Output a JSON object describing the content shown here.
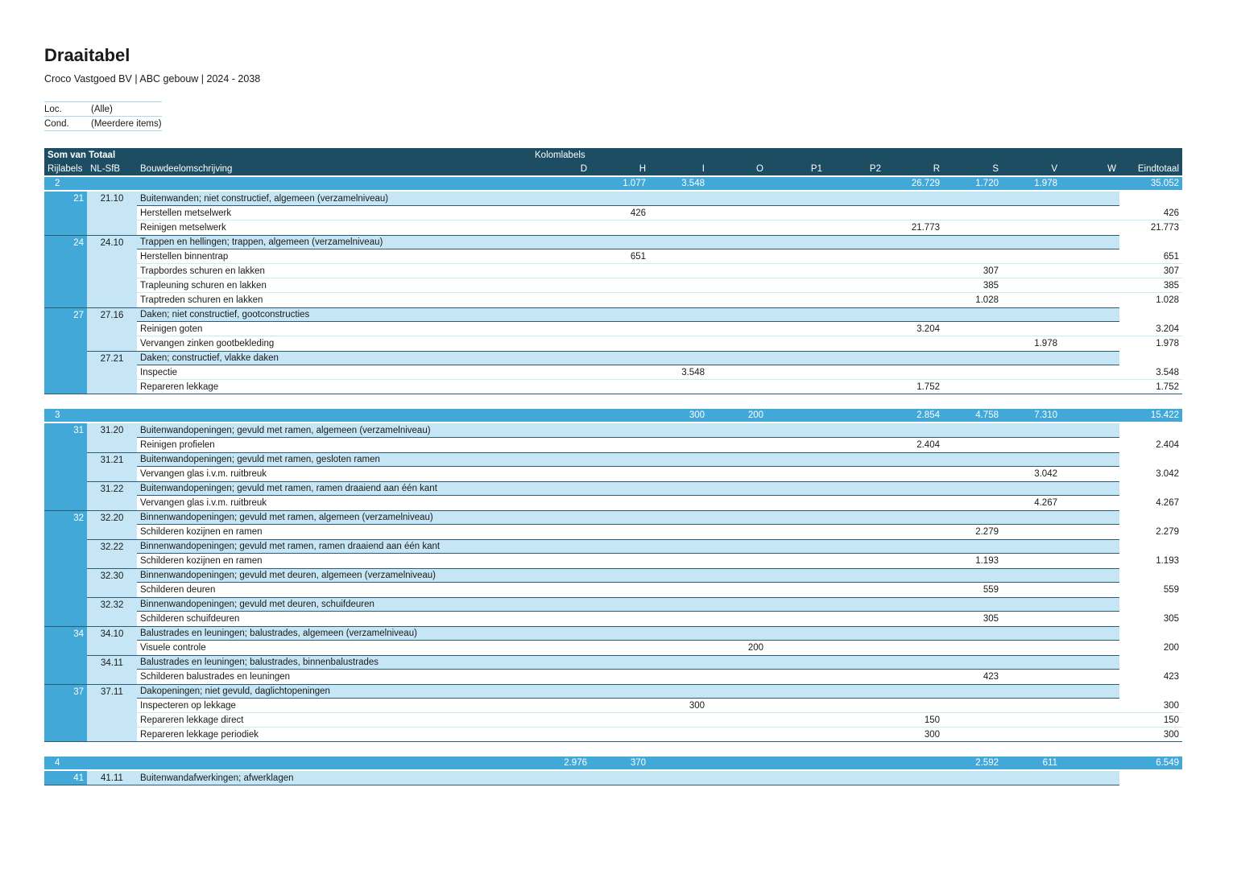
{
  "page": {
    "title": "Draaitabel",
    "subtitle": "Croco Vastgoed BV | ABC gebouw | 2024 - 2038"
  },
  "filters": [
    {
      "label": "Loc.",
      "value": "(Alle)"
    },
    {
      "label": "Cond.",
      "value": "(Meerdere items)"
    }
  ],
  "pivot": {
    "corner_label": "Som van Totaal",
    "column_area_label": "Kolomlabels",
    "row_header_labels": [
      "Rijlabels",
      "NL-SfB",
      "Bouwdeelomschrijving"
    ],
    "value_columns": [
      {
        "id": "D",
        "label": "D"
      },
      {
        "id": "H",
        "label": "H"
      },
      {
        "id": "I",
        "label": "I"
      },
      {
        "id": "O",
        "label": "O"
      },
      {
        "id": "P1",
        "label": "P1"
      },
      {
        "id": "P2",
        "label": "P2"
      },
      {
        "id": "R",
        "label": "R"
      },
      {
        "id": "S",
        "label": "S"
      },
      {
        "id": "V",
        "label": "V"
      },
      {
        "id": "W",
        "label": "W"
      },
      {
        "id": "ET",
        "label": "Eindtotaal"
      }
    ],
    "sections": [
      {
        "label": "2",
        "totals": {
          "H": "1.077",
          "I": "3.548",
          "R": "26.729",
          "S": "1.720",
          "V": "1.978",
          "ET": "35.052"
        },
        "blocks": [
          {
            "label": "21",
            "groups": [
              {
                "code": "21.10",
                "description": "Buitenwanden; niet constructief, algemeen (verzamelniveau)",
                "items": [
                  {
                    "name": "Herstellen metselwerk",
                    "values": {
                      "H": "426",
                      "ET": "426"
                    }
                  },
                  {
                    "name": "Reinigen metselwerk",
                    "values": {
                      "R": "21.773",
                      "ET": "21.773"
                    }
                  }
                ]
              }
            ]
          },
          {
            "label": "24",
            "groups": [
              {
                "code": "24.10",
                "description": "Trappen en hellingen; trappen, algemeen (verzamelniveau)",
                "items": [
                  {
                    "name": "Herstellen binnentrap",
                    "values": {
                      "H": "651",
                      "ET": "651"
                    }
                  },
                  {
                    "name": "Trapbordes schuren en lakken",
                    "values": {
                      "S": "307",
                      "ET": "307"
                    }
                  },
                  {
                    "name": "Trapleuning schuren en lakken",
                    "values": {
                      "S": "385",
                      "ET": "385"
                    }
                  },
                  {
                    "name": "Traptreden schuren en lakken",
                    "values": {
                      "S": "1.028",
                      "ET": "1.028"
                    }
                  }
                ]
              }
            ]
          },
          {
            "label": "27",
            "groups": [
              {
                "code": "27.16",
                "description": "Daken; niet constructief, gootconstructies",
                "items": [
                  {
                    "name": "Reinigen goten",
                    "values": {
                      "R": "3.204",
                      "ET": "3.204"
                    }
                  },
                  {
                    "name": "Vervangen zinken gootbekleding",
                    "values": {
                      "V": "1.978",
                      "ET": "1.978"
                    }
                  }
                ]
              },
              {
                "code": "27.21",
                "description": "Daken; constructief, vlakke daken",
                "items": [
                  {
                    "name": "Inspectie",
                    "values": {
                      "I": "3.548",
                      "ET": "3.548"
                    }
                  },
                  {
                    "name": "Repareren lekkage",
                    "values": {
                      "R": "1.752",
                      "ET": "1.752"
                    }
                  }
                ]
              }
            ]
          }
        ]
      },
      {
        "label": "3",
        "totals": {
          "I": "300",
          "O": "200",
          "R": "2.854",
          "S": "4.758",
          "V": "7.310",
          "ET": "15.422"
        },
        "blocks": [
          {
            "label": "31",
            "groups": [
              {
                "code": "31.20",
                "description": "Buitenwandopeningen; gevuld met ramen, algemeen (verzamelniveau)",
                "items": [
                  {
                    "name": "Reinigen profielen",
                    "values": {
                      "R": "2.404",
                      "ET": "2.404"
                    }
                  }
                ]
              },
              {
                "code": "31.21",
                "description": "Buitenwandopeningen; gevuld met ramen, gesloten ramen",
                "items": [
                  {
                    "name": "Vervangen glas i.v.m. ruitbreuk",
                    "values": {
                      "V": "3.042",
                      "ET": "3.042"
                    }
                  }
                ]
              },
              {
                "code": "31.22",
                "description": "Buitenwandopeningen; gevuld met ramen, ramen draaiend aan één kant",
                "items": [
                  {
                    "name": "Vervangen glas i.v.m. ruitbreuk",
                    "values": {
                      "V": "4.267",
                      "ET": "4.267"
                    }
                  }
                ]
              }
            ]
          },
          {
            "label": "32",
            "groups": [
              {
                "code": "32.20",
                "description": "Binnenwandopeningen; gevuld met ramen, algemeen (verzamelniveau)",
                "items": [
                  {
                    "name": "Schilderen kozijnen en ramen",
                    "values": {
                      "S": "2.279",
                      "ET": "2.279"
                    }
                  }
                ]
              },
              {
                "code": "32.22",
                "description": "Binnenwandopeningen; gevuld met ramen, ramen draaiend aan één kant",
                "items": [
                  {
                    "name": "Schilderen kozijnen en ramen",
                    "values": {
                      "S": "1.193",
                      "ET": "1.193"
                    }
                  }
                ]
              },
              {
                "code": "32.30",
                "description": "Binnenwandopeningen; gevuld met deuren, algemeen (verzamelniveau)",
                "items": [
                  {
                    "name": "Schilderen deuren",
                    "values": {
                      "S": "559",
                      "ET": "559"
                    }
                  }
                ]
              },
              {
                "code": "32.32",
                "description": "Binnenwandopeningen; gevuld met deuren, schuifdeuren",
                "items": [
                  {
                    "name": "Schilderen schuifdeuren",
                    "values": {
                      "S": "305",
                      "ET": "305"
                    }
                  }
                ]
              }
            ]
          },
          {
            "label": "34",
            "groups": [
              {
                "code": "34.10",
                "description": "Balustrades en leuningen; balustrades, algemeen (verzamelniveau)",
                "items": [
                  {
                    "name": "Visuele controle",
                    "values": {
                      "O": "200",
                      "ET": "200"
                    }
                  }
                ]
              },
              {
                "code": "34.11",
                "description": "Balustrades en leuningen; balustrades, binnenbalustrades",
                "items": [
                  {
                    "name": "Schilderen balustrades en leuningen",
                    "values": {
                      "S": "423",
                      "ET": "423"
                    }
                  }
                ]
              }
            ]
          },
          {
            "label": "37",
            "groups": [
              {
                "code": "37.11",
                "description": "Dakopeningen; niet gevuld, daglichtopeningen",
                "items": [
                  {
                    "name": "Inspecteren op lekkage",
                    "values": {
                      "I": "300",
                      "ET": "300"
                    }
                  },
                  {
                    "name": "Repareren lekkage direct",
                    "values": {
                      "R": "150",
                      "ET": "150"
                    }
                  },
                  {
                    "name": "Repareren lekkage periodiek",
                    "values": {
                      "R": "300",
                      "ET": "300"
                    }
                  }
                ]
              }
            ]
          }
        ]
      },
      {
        "label": "4",
        "totals": {
          "D": "2.976",
          "H": "370",
          "S": "2.592",
          "V": "611",
          "ET": "6.549"
        },
        "blocks": [
          {
            "label": "41",
            "groups": [
              {
                "code": "41.11",
                "description": "Buitenwandafwerkingen; afwerklagen",
                "items": []
              }
            ]
          }
        ]
      }
    ]
  },
  "colors": {
    "header_bg": "#1c4d63",
    "group_row_bg": "#42a8d8",
    "band_bg": "#c7e6f5",
    "row_separator": "#cde9f7",
    "dark_border": "#2b5c72",
    "filter_border": "#aad7ec",
    "text": "#1a1a1a"
  }
}
